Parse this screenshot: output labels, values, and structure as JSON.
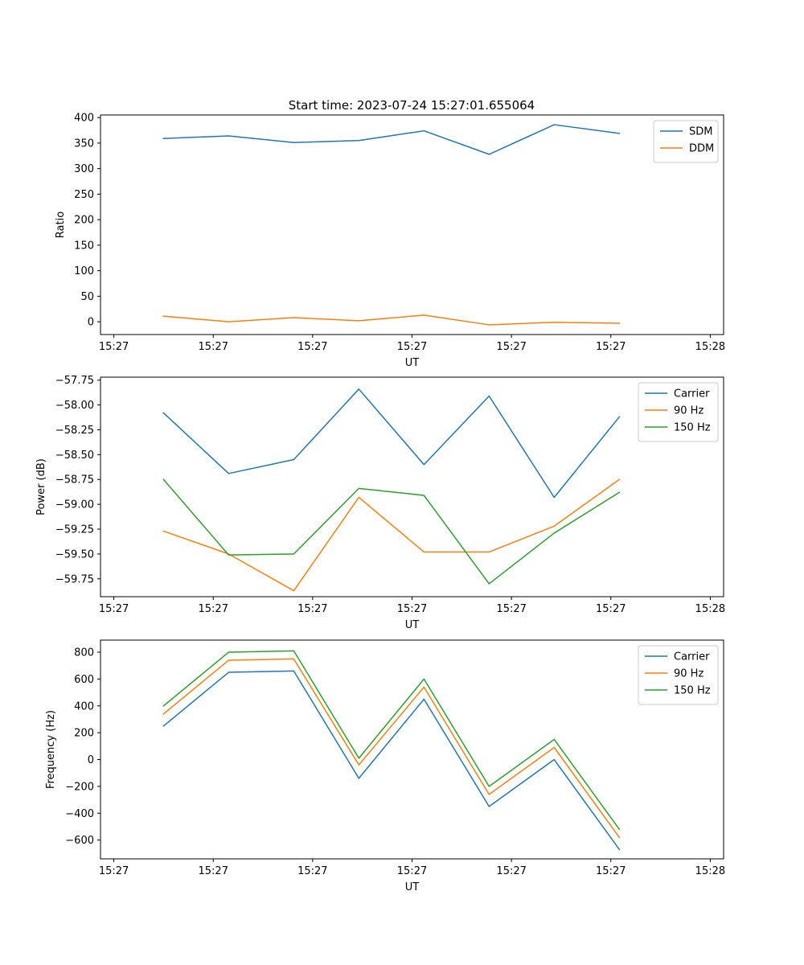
{
  "figure_title": "Start time: 2023-07-24 15:27:01.655064",
  "chart_data": [
    {
      "type": "line",
      "xlabel": "UT",
      "ylabel": "Ratio",
      "x_ticks": [
        "15:27",
        "15:27",
        "15:27",
        "15:27",
        "15:27",
        "15:27",
        "15:28"
      ],
      "x_tick_fractions": [
        0.0,
        0.1667,
        0.3333,
        0.5,
        0.6667,
        0.8333,
        1.0
      ],
      "x": [
        0.0833,
        0.1925,
        0.3017,
        0.4108,
        0.52,
        0.6292,
        0.7383,
        0.8475
      ],
      "y_ticks": [
        0,
        50,
        100,
        150,
        200,
        250,
        300,
        350,
        400
      ],
      "ylim": [
        -25,
        405
      ],
      "legend_position": "top-right",
      "series": [
        {
          "name": "SDM",
          "color": "#1f77b4",
          "values": [
            359,
            364,
            351,
            355,
            374,
            328,
            386,
            369
          ]
        },
        {
          "name": "DDM",
          "color": "#ff7f0e",
          "values": [
            11,
            0,
            8,
            2,
            13,
            -6,
            -1,
            -3
          ]
        }
      ]
    },
    {
      "type": "line",
      "xlabel": "UT",
      "ylabel": "Power (dB)",
      "x_ticks": [
        "15:27",
        "15:27",
        "15:27",
        "15:27",
        "15:27",
        "15:27",
        "15:28"
      ],
      "x_tick_fractions": [
        0.0,
        0.1667,
        0.3333,
        0.5,
        0.6667,
        0.8333,
        1.0
      ],
      "x": [
        0.0833,
        0.1925,
        0.3017,
        0.4108,
        0.52,
        0.6292,
        0.7383,
        0.8475
      ],
      "y_ticks": [
        "-59.75",
        "-59.50",
        "-59.25",
        "-59.00",
        "-58.75",
        "-58.50",
        "-58.25",
        "-58.00",
        "-57.75"
      ],
      "ylim": [
        -59.93,
        -57.72
      ],
      "legend_position": "top-right",
      "series": [
        {
          "name": "Carrier",
          "color": "#1f77b4",
          "values": [
            -58.08,
            -58.69,
            -58.55,
            -57.84,
            -58.6,
            -57.91,
            -58.93,
            -58.12
          ]
        },
        {
          "name": "90 Hz",
          "color": "#ff7f0e",
          "values": [
            -59.27,
            -59.5,
            -59.87,
            -58.93,
            -59.48,
            -59.48,
            -59.22,
            -58.75
          ]
        },
        {
          "name": "150 Hz",
          "color": "#2ca02c",
          "values": [
            -58.75,
            -59.51,
            -59.5,
            -58.84,
            -58.91,
            -59.8,
            -59.29,
            -58.88
          ]
        }
      ]
    },
    {
      "type": "line",
      "xlabel": "UT",
      "ylabel": "Frequency (Hz)",
      "x_ticks": [
        "15:27",
        "15:27",
        "15:27",
        "15:27",
        "15:27",
        "15:27",
        "15:28"
      ],
      "x_tick_fractions": [
        0.0,
        0.1667,
        0.3333,
        0.5,
        0.6667,
        0.8333,
        1.0
      ],
      "x": [
        0.0833,
        0.1925,
        0.3017,
        0.4108,
        0.52,
        0.6292,
        0.7383,
        0.8475
      ],
      "y_ticks": [
        -600,
        -400,
        -200,
        0,
        200,
        400,
        600,
        800
      ],
      "ylim": [
        -740,
        890
      ],
      "legend_position": "top-right",
      "series": [
        {
          "name": "Carrier",
          "color": "#1f77b4",
          "values": [
            250,
            650,
            660,
            -140,
            450,
            -350,
            0,
            -670
          ]
        },
        {
          "name": "90 Hz",
          "color": "#ff7f0e",
          "values": [
            340,
            740,
            750,
            -40,
            540,
            -260,
            90,
            -580
          ]
        },
        {
          "name": "150 Hz",
          "color": "#2ca02c",
          "values": [
            400,
            800,
            810,
            10,
            600,
            -200,
            150,
            -520
          ]
        }
      ]
    }
  ]
}
